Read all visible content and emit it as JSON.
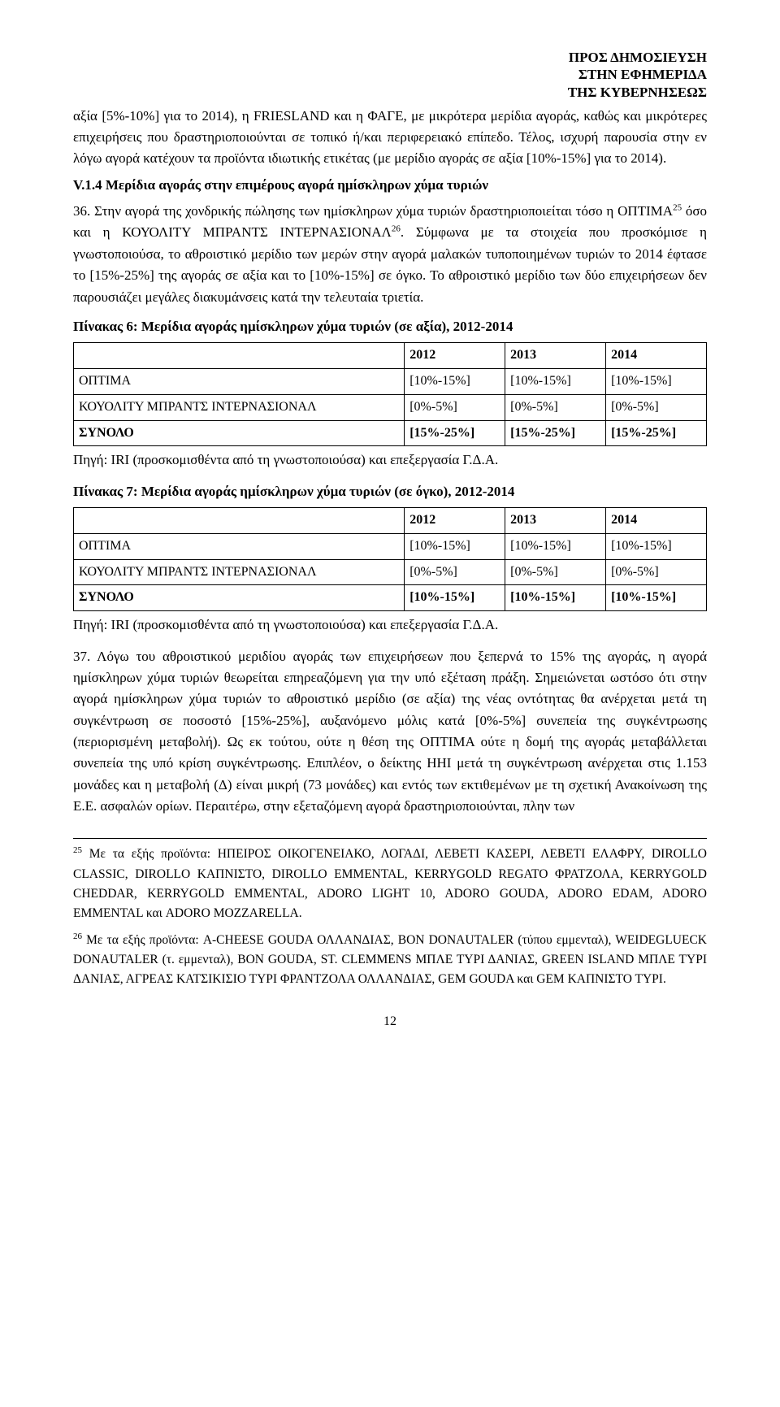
{
  "header": {
    "line1": "ΠΡΟΣ ΔΗΜΟΣΙΕΥΣΗ",
    "line2": "ΣΤΗΝ ΕΦΗΜΕΡΙΔΑ",
    "line3": "ΤΗΣ ΚΥΒΕΡΝΗΣΕΩΣ"
  },
  "para1": "αξία [5%-10%] για το 2014), η FRIESLAND και η ΦΑΓΕ, με μικρότερα μερίδια αγοράς, καθώς και μικρότερες επιχειρήσεις που δραστηριοποιούνται σε τοπικό ή/και περιφερειακό επίπεδο. Τέλος, ισχυρή παρουσία στην εν λόγω αγορά κατέχουν τα προϊόντα ιδιωτικής ετικέτας (με μερίδιο αγοράς σε αξία [10%-15%] για το 2014).",
  "section_head": "V.1.4   Μερίδια αγοράς στην επιμέρους αγορά ημίσκληρων χύμα τυριών",
  "para2a": "36.  Στην αγορά της χονδρικής πώλησης των ημίσκληρων χύμα τυριών δραστηριοποιείται τόσο η ΟΠΤΙΜΑ",
  "para2b": " όσο και η ΚΟΥΟΛΙΤΥ ΜΠΡΑΝΤΣ ΙΝΤΕΡΝΑΣΙΟΝΑΛ",
  "para2c": ". Σύμφωνα με τα στοιχεία που προσκόμισε η γνωστοποιούσα, το αθροιστικό μερίδιο των μερών στην αγορά μαλακών τυποποιημένων τυριών το 2014 έφτασε το [15%-25%] της αγοράς σε αξία και το [10%-15%] σε όγκο. Το αθροιστικό μερίδιο των δύο επιχειρήσεων δεν παρουσιάζει μεγάλες διακυμάνσεις κατά την τελευταία τριετία.",
  "fn25": "25",
  "fn26": "26",
  "table6": {
    "title": "Πίνακας 6: Μερίδια αγοράς ημίσκληρων χύμα τυριών (σε αξία), 2012-2014",
    "years": [
      "2012",
      "2013",
      "2014"
    ],
    "rows": [
      {
        "label": "ΟΠΤΙΜΑ",
        "v": [
          "[10%-15%]",
          "[10%-15%]",
          "[10%-15%]"
        ],
        "bold": false
      },
      {
        "label": "ΚΟΥΟΛΙΤΥ ΜΠΡΑΝΤΣ ΙΝΤΕΡΝΑΣΙΟΝΑΛ",
        "v": [
          "[0%-5%]",
          "[0%-5%]",
          "[0%-5%]"
        ],
        "bold": false
      },
      {
        "label": "ΣΥΝΟΛΟ",
        "v": [
          "[15%-25%]",
          "[15%-25%]",
          "[15%-25%]"
        ],
        "bold": true
      }
    ]
  },
  "source_prefix": "Πηγή: ",
  "source_text": "IRI (προσκομισθέντα από τη γνωστοποιούσα) και επεξεργασία  Γ.Δ.Α.",
  "table7": {
    "title": "Πίνακας 7: Μερίδια αγοράς ημίσκληρων χύμα τυριών (σε όγκο), 2012-2014",
    "years": [
      "2012",
      "2013",
      "2014"
    ],
    "rows": [
      {
        "label": "ΟΠΤΙΜΑ",
        "v": [
          "[10%-15%]",
          "[10%-15%]",
          "[10%-15%]"
        ],
        "bold": false
      },
      {
        "label": "ΚΟΥΟΛΙΤΥ ΜΠΡΑΝΤΣ ΙΝΤΕΡΝΑΣΙΟΝΑΛ",
        "v": [
          "[0%-5%]",
          "[0%-5%]",
          "[0%-5%]"
        ],
        "bold": false
      },
      {
        "label": "ΣΥΝΟΛΟ",
        "v": [
          "[10%-15%]",
          "[10%-15%]",
          "[10%-15%]"
        ],
        "bold": true
      }
    ]
  },
  "para3": "37.  Λόγω του αθροιστικού μεριδίου αγοράς των επιχειρήσεων που ξεπερνά το 15% της αγοράς, η αγορά ημίσκληρων χύμα τυριών θεωρείται επηρεαζόμενη για την υπό εξέταση πράξη. Σημειώνεται ωστόσο ότι στην αγορά ημίσκληρων χύμα τυριών το αθροιστικό μερίδιο (σε αξία) της νέας οντότητας θα ανέρχεται μετά τη συγκέντρωση σε ποσοστό [15%-25%], αυξανόμενο μόλις κατά [0%-5%] συνεπεία της συγκέντρωσης (περιορισμένη μεταβολή). Ως εκ τούτου, ούτε η θέση της ΟΠΤΙΜΑ ούτε η δομή της αγοράς μεταβάλλεται συνεπεία της υπό κρίση συγκέντρωσης. Επιπλέον, ο δείκτης ΗΗΙ μετά τη συγκέντρωση ανέρχεται στις 1.153 μονάδες και η μεταβολή (Δ) είναι μικρή (73 μονάδες) και εντός των εκτιθεμένων με τη σχετική Ανακοίνωση της Ε.Ε. ασφαλών ορίων. Περαιτέρω, στην εξεταζόμενη αγορά δραστηριοποιούνται, πλην των",
  "footnote25_num": "25",
  "footnote25": " Με τα εξής προϊόντα: ΗΠΕΙΡΟΣ ΟΙΚΟΓΕΝΕΙΑΚΟ, ΛΟΓΑΔΙ, ΛΕΒΕΤΙ ΚΑΣΕΡΙ, ΛΕΒΕΤΙ ΕΛΑΦΡΥ, DIROLLO CLASSIC, DIROLLO ΚΑΠΝΙΣΤΟ, DIROLLO EMMENTAL, KERRYGOLD REGATO ΦΡΑΤΖΟΛΑ, KERRYGOLD CHEDDAR, KERRYGOLD EMMENTAL, ADORO LIGHT 10, ADORO GOUDA, ADORO EDAM, ADORO EMMENTAL και ADORO MOZZARELLA.",
  "footnote26_num": "26",
  "footnote26": " Με τα εξής προϊόντα: A-CHEESE GOUDA ΟΛΛΑΝΔΙΑΣ, BON DONAUTALER (τύπου εμμενταλ), WEIDEGLUECK DONAUTALER (τ. εμμενταλ), BON GOUDA, ST. CLEMMENS ΜΠΛΕ ΤΥΡΙ ΔΑΝΙΑΣ, GREEN ISLAND ΜΠΛΕ ΤΥΡΙ ΔΑΝΙΑΣ, ΑΓΡΕΑΣ ΚΑΤΣΙΚΙΣΙΟ ΤΥΡΙ ΦΡΑΝΤΖΟΛΑ ΟΛΛΑΝΔΙΑΣ, GEM GOUDA και GEM ΚΑΠΝΙΣΤΟ ΤΥΡΙ.",
  "page_number": "12"
}
